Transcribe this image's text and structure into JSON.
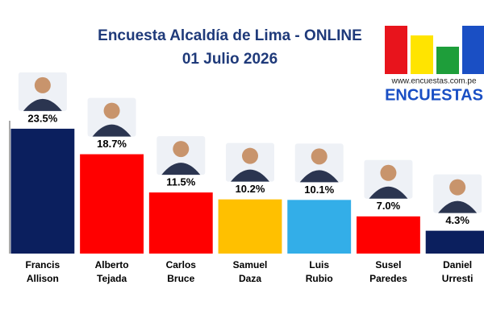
{
  "chart_data": {
    "type": "bar",
    "title": "Encuesta Alcaldía de Lima - ONLINE",
    "subtitle": "01 Julio 2026",
    "logo": {
      "url": "www.encuestas.com.pe",
      "name": "ENCUESTAS"
    },
    "categories": [
      "Francis Allison",
      "Alberto Tejada",
      "Carlos Bruce",
      "Samuel Daza",
      "Luis Rubio",
      "Susel Paredes",
      "Daniel Urresti"
    ],
    "values": [
      23.5,
      18.7,
      11.5,
      10.2,
      10.1,
      7.0,
      4.3
    ],
    "value_labels": [
      "23.5%",
      "18.7%",
      "11.5%",
      "10.2%",
      "10.1%",
      "7.0%",
      "4.3%"
    ],
    "colors": [
      "#0b1f5e",
      "#ff0000",
      "#ff0000",
      "#ffc000",
      "#33aee8",
      "#ff0000",
      "#0b1f5e"
    ],
    "ylim": [
      0,
      25
    ]
  }
}
